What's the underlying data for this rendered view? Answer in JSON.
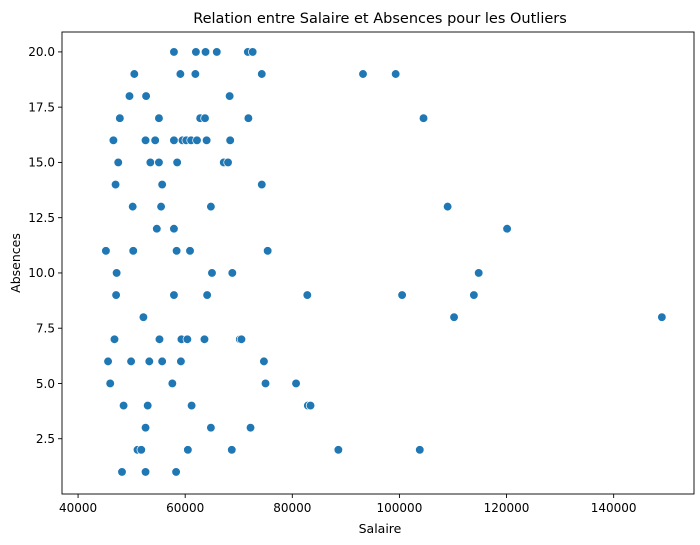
{
  "chart_data": {
    "type": "scatter",
    "title": "Relation entre Salaire et Absences pour les Outliers",
    "xlabel": "Salaire",
    "ylabel": "Absences",
    "xlim": [
      37000,
      155000
    ],
    "ylim": [
      0.0,
      20.9
    ],
    "x_ticks": [
      40000,
      60000,
      80000,
      100000,
      120000,
      140000
    ],
    "x_tick_labels": [
      "40000",
      "60000",
      "80000",
      "100000",
      "120000",
      "140000"
    ],
    "y_ticks": [
      2.5,
      5.0,
      7.5,
      10.0,
      12.5,
      15.0,
      17.5,
      20.0
    ],
    "y_tick_labels": [
      "2.5",
      "5.0",
      "7.5",
      "10.0",
      "12.5",
      "15.0",
      "17.5",
      "20.0"
    ],
    "grid": false,
    "legend": "none",
    "marker_color": "#1f77b4",
    "marker_edge_color": "#ffffff",
    "points": [
      {
        "x": 48200,
        "y": 1
      },
      {
        "x": 52600,
        "y": 1
      },
      {
        "x": 58300,
        "y": 1
      },
      {
        "x": 51100,
        "y": 2
      },
      {
        "x": 51800,
        "y": 2
      },
      {
        "x": 60500,
        "y": 2
      },
      {
        "x": 68700,
        "y": 2
      },
      {
        "x": 88600,
        "y": 2
      },
      {
        "x": 103800,
        "y": 2
      },
      {
        "x": 52600,
        "y": 3
      },
      {
        "x": 64800,
        "y": 3
      },
      {
        "x": 72200,
        "y": 3
      },
      {
        "x": 48500,
        "y": 4
      },
      {
        "x": 53000,
        "y": 4
      },
      {
        "x": 61200,
        "y": 4
      },
      {
        "x": 82900,
        "y": 4
      },
      {
        "x": 83400,
        "y": 4
      },
      {
        "x": 46000,
        "y": 5
      },
      {
        "x": 57600,
        "y": 5
      },
      {
        "x": 75000,
        "y": 5
      },
      {
        "x": 80700,
        "y": 5
      },
      {
        "x": 45600,
        "y": 6
      },
      {
        "x": 49900,
        "y": 6
      },
      {
        "x": 53300,
        "y": 6
      },
      {
        "x": 55700,
        "y": 6
      },
      {
        "x": 59200,
        "y": 6
      },
      {
        "x": 74700,
        "y": 6
      },
      {
        "x": 46800,
        "y": 7
      },
      {
        "x": 55200,
        "y": 7
      },
      {
        "x": 59300,
        "y": 7
      },
      {
        "x": 60400,
        "y": 7
      },
      {
        "x": 63600,
        "y": 7
      },
      {
        "x": 70200,
        "y": 7
      },
      {
        "x": 70500,
        "y": 7
      },
      {
        "x": 52200,
        "y": 8
      },
      {
        "x": 110200,
        "y": 8
      },
      {
        "x": 149000,
        "y": 8
      },
      {
        "x": 47100,
        "y": 9
      },
      {
        "x": 57900,
        "y": 9
      },
      {
        "x": 64100,
        "y": 9
      },
      {
        "x": 82800,
        "y": 9
      },
      {
        "x": 100500,
        "y": 9
      },
      {
        "x": 113900,
        "y": 9
      },
      {
        "x": 47200,
        "y": 10
      },
      {
        "x": 65000,
        "y": 10
      },
      {
        "x": 68800,
        "y": 10
      },
      {
        "x": 114800,
        "y": 10
      },
      {
        "x": 45200,
        "y": 11
      },
      {
        "x": 50300,
        "y": 11
      },
      {
        "x": 58400,
        "y": 11
      },
      {
        "x": 60900,
        "y": 11
      },
      {
        "x": 75400,
        "y": 11
      },
      {
        "x": 54700,
        "y": 12
      },
      {
        "x": 57900,
        "y": 12
      },
      {
        "x": 120100,
        "y": 12
      },
      {
        "x": 50200,
        "y": 13
      },
      {
        "x": 55500,
        "y": 13
      },
      {
        "x": 64800,
        "y": 13
      },
      {
        "x": 109000,
        "y": 13
      },
      {
        "x": 47000,
        "y": 14
      },
      {
        "x": 55700,
        "y": 14
      },
      {
        "x": 74300,
        "y": 14
      },
      {
        "x": 47500,
        "y": 15
      },
      {
        "x": 53500,
        "y": 15
      },
      {
        "x": 55100,
        "y": 15
      },
      {
        "x": 58500,
        "y": 15
      },
      {
        "x": 67200,
        "y": 15
      },
      {
        "x": 68000,
        "y": 15
      },
      {
        "x": 46600,
        "y": 16
      },
      {
        "x": 52600,
        "y": 16
      },
      {
        "x": 54400,
        "y": 16
      },
      {
        "x": 57900,
        "y": 16
      },
      {
        "x": 59500,
        "y": 16
      },
      {
        "x": 60200,
        "y": 16
      },
      {
        "x": 61100,
        "y": 16
      },
      {
        "x": 62200,
        "y": 16
      },
      {
        "x": 64000,
        "y": 16
      },
      {
        "x": 68400,
        "y": 16
      },
      {
        "x": 47800,
        "y": 17
      },
      {
        "x": 55100,
        "y": 17
      },
      {
        "x": 62800,
        "y": 17
      },
      {
        "x": 63700,
        "y": 17
      },
      {
        "x": 71800,
        "y": 17
      },
      {
        "x": 104500,
        "y": 17
      },
      {
        "x": 49600,
        "y": 18
      },
      {
        "x": 52700,
        "y": 18
      },
      {
        "x": 68300,
        "y": 18
      },
      {
        "x": 50500,
        "y": 19
      },
      {
        "x": 59100,
        "y": 19
      },
      {
        "x": 61900,
        "y": 19
      },
      {
        "x": 74300,
        "y": 19
      },
      {
        "x": 93200,
        "y": 19
      },
      {
        "x": 99300,
        "y": 19
      },
      {
        "x": 57900,
        "y": 20
      },
      {
        "x": 62000,
        "y": 20
      },
      {
        "x": 63800,
        "y": 20
      },
      {
        "x": 65900,
        "y": 20
      },
      {
        "x": 71700,
        "y": 20
      },
      {
        "x": 72600,
        "y": 20
      }
    ]
  }
}
